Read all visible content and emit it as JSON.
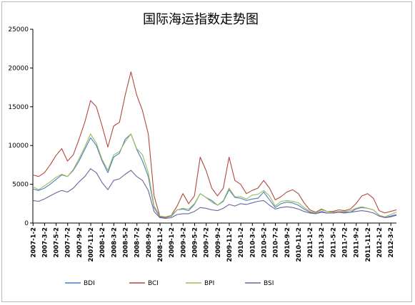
{
  "chart_data": {
    "type": "line",
    "title": "国际海运指数走势图",
    "xlabel": "",
    "ylabel": "",
    "ylim": [
      0,
      25000
    ],
    "yticks": [
      0,
      5000,
      10000,
      15000,
      20000,
      25000
    ],
    "grid": false,
    "legend_position": "bottom",
    "x_range": [
      "2007-1",
      "2012-4"
    ],
    "x": [
      "2007-1-2",
      "2007-3-2",
      "2007-5-2",
      "2007-7-2",
      "2007-9-2",
      "2007-11-2",
      "2008-1-2",
      "2008-3-2",
      "2008-5-2",
      "2008-7-2",
      "2008-9-2",
      "2008-11-2",
      "2009-1-2",
      "2009-3-2",
      "2009-5-2",
      "2009-7-2",
      "2009-9-2",
      "2009-11-2",
      "2010-1-2",
      "2010-3-2",
      "2010-5-2",
      "2010-7-2",
      "2010-9-2",
      "2010-11-2",
      "2011-1-2",
      "2011-3-2",
      "2011-5-2",
      "2011-7-2",
      "2011-9-2",
      "2011-11-2",
      "2012-1-2",
      "2012-3-2"
    ],
    "series": [
      {
        "name": "BDI",
        "color": "#4a7fc1",
        "points": [
          [
            "2007-1",
            4400
          ],
          [
            "2007-2",
            4200
          ],
          [
            "2007-3",
            4500
          ],
          [
            "2007-4",
            5000
          ],
          [
            "2007-5",
            5600
          ],
          [
            "2007-6",
            6200
          ],
          [
            "2007-7",
            6000
          ],
          [
            "2007-8",
            6800
          ],
          [
            "2007-9",
            8000
          ],
          [
            "2007-10",
            9500
          ],
          [
            "2007-11",
            11000
          ],
          [
            "2007-12",
            10000
          ],
          [
            "2008-1",
            8000
          ],
          [
            "2008-2",
            6500
          ],
          [
            "2008-3",
            8500
          ],
          [
            "2008-4",
            9000
          ],
          [
            "2008-5",
            10800
          ],
          [
            "2008-6",
            11500
          ],
          [
            "2008-7",
            9500
          ],
          [
            "2008-8",
            8000
          ],
          [
            "2008-9",
            6000
          ],
          [
            "2008-10",
            2000
          ],
          [
            "2008-11",
            800
          ],
          [
            "2008-12",
            700
          ],
          [
            "2009-1",
            900
          ],
          [
            "2009-2",
            1700
          ],
          [
            "2009-3",
            1800
          ],
          [
            "2009-4",
            1600
          ],
          [
            "2009-5",
            2400
          ],
          [
            "2009-6",
            3800
          ],
          [
            "2009-7",
            3300
          ],
          [
            "2009-8",
            2900
          ],
          [
            "2009-9",
            2300
          ],
          [
            "2009-10",
            2800
          ],
          [
            "2009-11",
            4300
          ],
          [
            "2009-12",
            3300
          ],
          [
            "2010-1",
            3200
          ],
          [
            "2010-2",
            2900
          ],
          [
            "2010-3",
            3100
          ],
          [
            "2010-4",
            3200
          ],
          [
            "2010-5",
            4000
          ],
          [
            "2010-6",
            3000
          ],
          [
            "2010-7",
            2000
          ],
          [
            "2010-8",
            2500
          ],
          [
            "2010-9",
            2700
          ],
          [
            "2010-10",
            2600
          ],
          [
            "2010-11",
            2300
          ],
          [
            "2010-12",
            1800
          ],
          [
            "2011-1",
            1400
          ],
          [
            "2011-2",
            1200
          ],
          [
            "2011-3",
            1500
          ],
          [
            "2011-4",
            1300
          ],
          [
            "2011-5",
            1300
          ],
          [
            "2011-6",
            1400
          ],
          [
            "2011-7",
            1400
          ],
          [
            "2011-8",
            1400
          ],
          [
            "2011-9",
            1800
          ],
          [
            "2011-10",
            2000
          ],
          [
            "2011-11",
            1900
          ],
          [
            "2011-12",
            1700
          ],
          [
            "2012-1",
            1000
          ],
          [
            "2012-2",
            700
          ],
          [
            "2012-3",
            900
          ],
          [
            "2012-4",
            1100
          ]
        ]
      },
      {
        "name": "BCI",
        "color": "#b5473f",
        "points": [
          [
            "2007-1",
            6200
          ],
          [
            "2007-2",
            6000
          ],
          [
            "2007-3",
            6500
          ],
          [
            "2007-4",
            7500
          ],
          [
            "2007-5",
            8700
          ],
          [
            "2007-6",
            9600
          ],
          [
            "2007-7",
            8000
          ],
          [
            "2007-8",
            8800
          ],
          [
            "2007-9",
            10800
          ],
          [
            "2007-10",
            13000
          ],
          [
            "2007-11",
            15800
          ],
          [
            "2007-12",
            15000
          ],
          [
            "2008-1",
            12500
          ],
          [
            "2008-2",
            9800
          ],
          [
            "2008-3",
            12500
          ],
          [
            "2008-4",
            13000
          ],
          [
            "2008-5",
            16500
          ],
          [
            "2008-6",
            19500
          ],
          [
            "2008-7",
            16500
          ],
          [
            "2008-8",
            14500
          ],
          [
            "2008-9",
            11500
          ],
          [
            "2008-10",
            3500
          ],
          [
            "2008-11",
            900
          ],
          [
            "2008-12",
            700
          ],
          [
            "2009-1",
            1000
          ],
          [
            "2009-2",
            2200
          ],
          [
            "2009-3",
            3800
          ],
          [
            "2009-4",
            2500
          ],
          [
            "2009-5",
            3500
          ],
          [
            "2009-6",
            8500
          ],
          [
            "2009-7",
            6800
          ],
          [
            "2009-8",
            4500
          ],
          [
            "2009-9",
            3500
          ],
          [
            "2009-10",
            4500
          ],
          [
            "2009-11",
            8500
          ],
          [
            "2009-12",
            5500
          ],
          [
            "2010-1",
            5000
          ],
          [
            "2010-2",
            3800
          ],
          [
            "2010-3",
            4200
          ],
          [
            "2010-4",
            4500
          ],
          [
            "2010-5",
            5500
          ],
          [
            "2010-6",
            4500
          ],
          [
            "2010-7",
            3000
          ],
          [
            "2010-8",
            3400
          ],
          [
            "2010-9",
            4000
          ],
          [
            "2010-10",
            4300
          ],
          [
            "2010-11",
            3800
          ],
          [
            "2010-12",
            2600
          ],
          [
            "2011-1",
            1700
          ],
          [
            "2011-2",
            1400
          ],
          [
            "2011-3",
            1800
          ],
          [
            "2011-4",
            1500
          ],
          [
            "2011-5",
            1500
          ],
          [
            "2011-6",
            1700
          ],
          [
            "2011-7",
            1600
          ],
          [
            "2011-8",
            1800
          ],
          [
            "2011-9",
            2500
          ],
          [
            "2011-10",
            3500
          ],
          [
            "2011-11",
            3800
          ],
          [
            "2011-12",
            3200
          ],
          [
            "2012-1",
            1600
          ],
          [
            "2012-2",
            1300
          ],
          [
            "2012-3",
            1500
          ],
          [
            "2012-4",
            1700
          ]
        ]
      },
      {
        "name": "BPI",
        "color": "#9bbb59",
        "points": [
          [
            "2007-1",
            4700
          ],
          [
            "2007-2",
            4300
          ],
          [
            "2007-3",
            4800
          ],
          [
            "2007-4",
            5300
          ],
          [
            "2007-5",
            5900
          ],
          [
            "2007-6",
            6300
          ],
          [
            "2007-7",
            6000
          ],
          [
            "2007-8",
            6900
          ],
          [
            "2007-9",
            8300
          ],
          [
            "2007-10",
            9800
          ],
          [
            "2007-11",
            11500
          ],
          [
            "2007-12",
            10300
          ],
          [
            "2008-1",
            8200
          ],
          [
            "2008-2",
            6800
          ],
          [
            "2008-3",
            8800
          ],
          [
            "2008-4",
            9200
          ],
          [
            "2008-5",
            10500
          ],
          [
            "2008-6",
            11500
          ],
          [
            "2008-7",
            9600
          ],
          [
            "2008-8",
            8800
          ],
          [
            "2008-9",
            6500
          ],
          [
            "2008-10",
            2200
          ],
          [
            "2008-11",
            900
          ],
          [
            "2008-12",
            800
          ],
          [
            "2009-1",
            1000
          ],
          [
            "2009-2",
            1700
          ],
          [
            "2009-3",
            1900
          ],
          [
            "2009-4",
            1800
          ],
          [
            "2009-5",
            2500
          ],
          [
            "2009-6",
            3800
          ],
          [
            "2009-7",
            3300
          ],
          [
            "2009-8",
            2700
          ],
          [
            "2009-9",
            2300
          ],
          [
            "2009-10",
            2900
          ],
          [
            "2009-11",
            4500
          ],
          [
            "2009-12",
            3400
          ],
          [
            "2010-1",
            3400
          ],
          [
            "2010-2",
            3100
          ],
          [
            "2010-3",
            3600
          ],
          [
            "2010-4",
            3700
          ],
          [
            "2010-5",
            4200
          ],
          [
            "2010-6",
            3500
          ],
          [
            "2010-7",
            2200
          ],
          [
            "2010-8",
            2800
          ],
          [
            "2010-9",
            2900
          ],
          [
            "2010-10",
            2800
          ],
          [
            "2010-11",
            2600
          ],
          [
            "2010-12",
            2000
          ],
          [
            "2011-1",
            1500
          ],
          [
            "2011-2",
            1300
          ],
          [
            "2011-3",
            1700
          ],
          [
            "2011-4",
            1500
          ],
          [
            "2011-5",
            1400
          ],
          [
            "2011-6",
            1500
          ],
          [
            "2011-7",
            1500
          ],
          [
            "2011-8",
            1600
          ],
          [
            "2011-9",
            1900
          ],
          [
            "2011-10",
            2100
          ],
          [
            "2011-11",
            1900
          ],
          [
            "2011-12",
            1700
          ],
          [
            "2012-1",
            1000
          ],
          [
            "2012-2",
            800
          ],
          [
            "2012-3",
            1100
          ],
          [
            "2012-4",
            1400
          ]
        ]
      },
      {
        "name": "BSI",
        "color": "#7060a0",
        "points": [
          [
            "2007-1",
            2900
          ],
          [
            "2007-2",
            2800
          ],
          [
            "2007-3",
            3100
          ],
          [
            "2007-4",
            3500
          ],
          [
            "2007-5",
            3900
          ],
          [
            "2007-6",
            4200
          ],
          [
            "2007-7",
            4000
          ],
          [
            "2007-8",
            4500
          ],
          [
            "2007-9",
            5300
          ],
          [
            "2007-10",
            6000
          ],
          [
            "2007-11",
            7000
          ],
          [
            "2007-12",
            6500
          ],
          [
            "2008-1",
            5200
          ],
          [
            "2008-2",
            4300
          ],
          [
            "2008-3",
            5500
          ],
          [
            "2008-4",
            5700
          ],
          [
            "2008-5",
            6300
          ],
          [
            "2008-6",
            6800
          ],
          [
            "2008-7",
            6000
          ],
          [
            "2008-8",
            5500
          ],
          [
            "2008-9",
            4200
          ],
          [
            "2008-10",
            1500
          ],
          [
            "2008-11",
            700
          ],
          [
            "2008-12",
            600
          ],
          [
            "2009-1",
            700
          ],
          [
            "2009-2",
            1100
          ],
          [
            "2009-3",
            1200
          ],
          [
            "2009-4",
            1200
          ],
          [
            "2009-5",
            1500
          ],
          [
            "2009-6",
            2000
          ],
          [
            "2009-7",
            1900
          ],
          [
            "2009-8",
            1700
          ],
          [
            "2009-9",
            1600
          ],
          [
            "2009-10",
            1900
          ],
          [
            "2009-11",
            2400
          ],
          [
            "2009-12",
            2200
          ],
          [
            "2010-1",
            2500
          ],
          [
            "2010-2",
            2400
          ],
          [
            "2010-3",
            2600
          ],
          [
            "2010-4",
            2800
          ],
          [
            "2010-5",
            2900
          ],
          [
            "2010-6",
            2300
          ],
          [
            "2010-7",
            1800
          ],
          [
            "2010-8",
            2000
          ],
          [
            "2010-9",
            2100
          ],
          [
            "2010-10",
            2000
          ],
          [
            "2010-11",
            1800
          ],
          [
            "2010-12",
            1500
          ],
          [
            "2011-1",
            1300
          ],
          [
            "2011-2",
            1200
          ],
          [
            "2011-3",
            1400
          ],
          [
            "2011-4",
            1300
          ],
          [
            "2011-5",
            1300
          ],
          [
            "2011-6",
            1400
          ],
          [
            "2011-7",
            1300
          ],
          [
            "2011-8",
            1400
          ],
          [
            "2011-9",
            1500
          ],
          [
            "2011-10",
            1600
          ],
          [
            "2011-11",
            1500
          ],
          [
            "2011-12",
            1300
          ],
          [
            "2012-1",
            900
          ],
          [
            "2012-2",
            700
          ],
          [
            "2012-3",
            800
          ],
          [
            "2012-4",
            1000
          ]
        ]
      }
    ]
  }
}
